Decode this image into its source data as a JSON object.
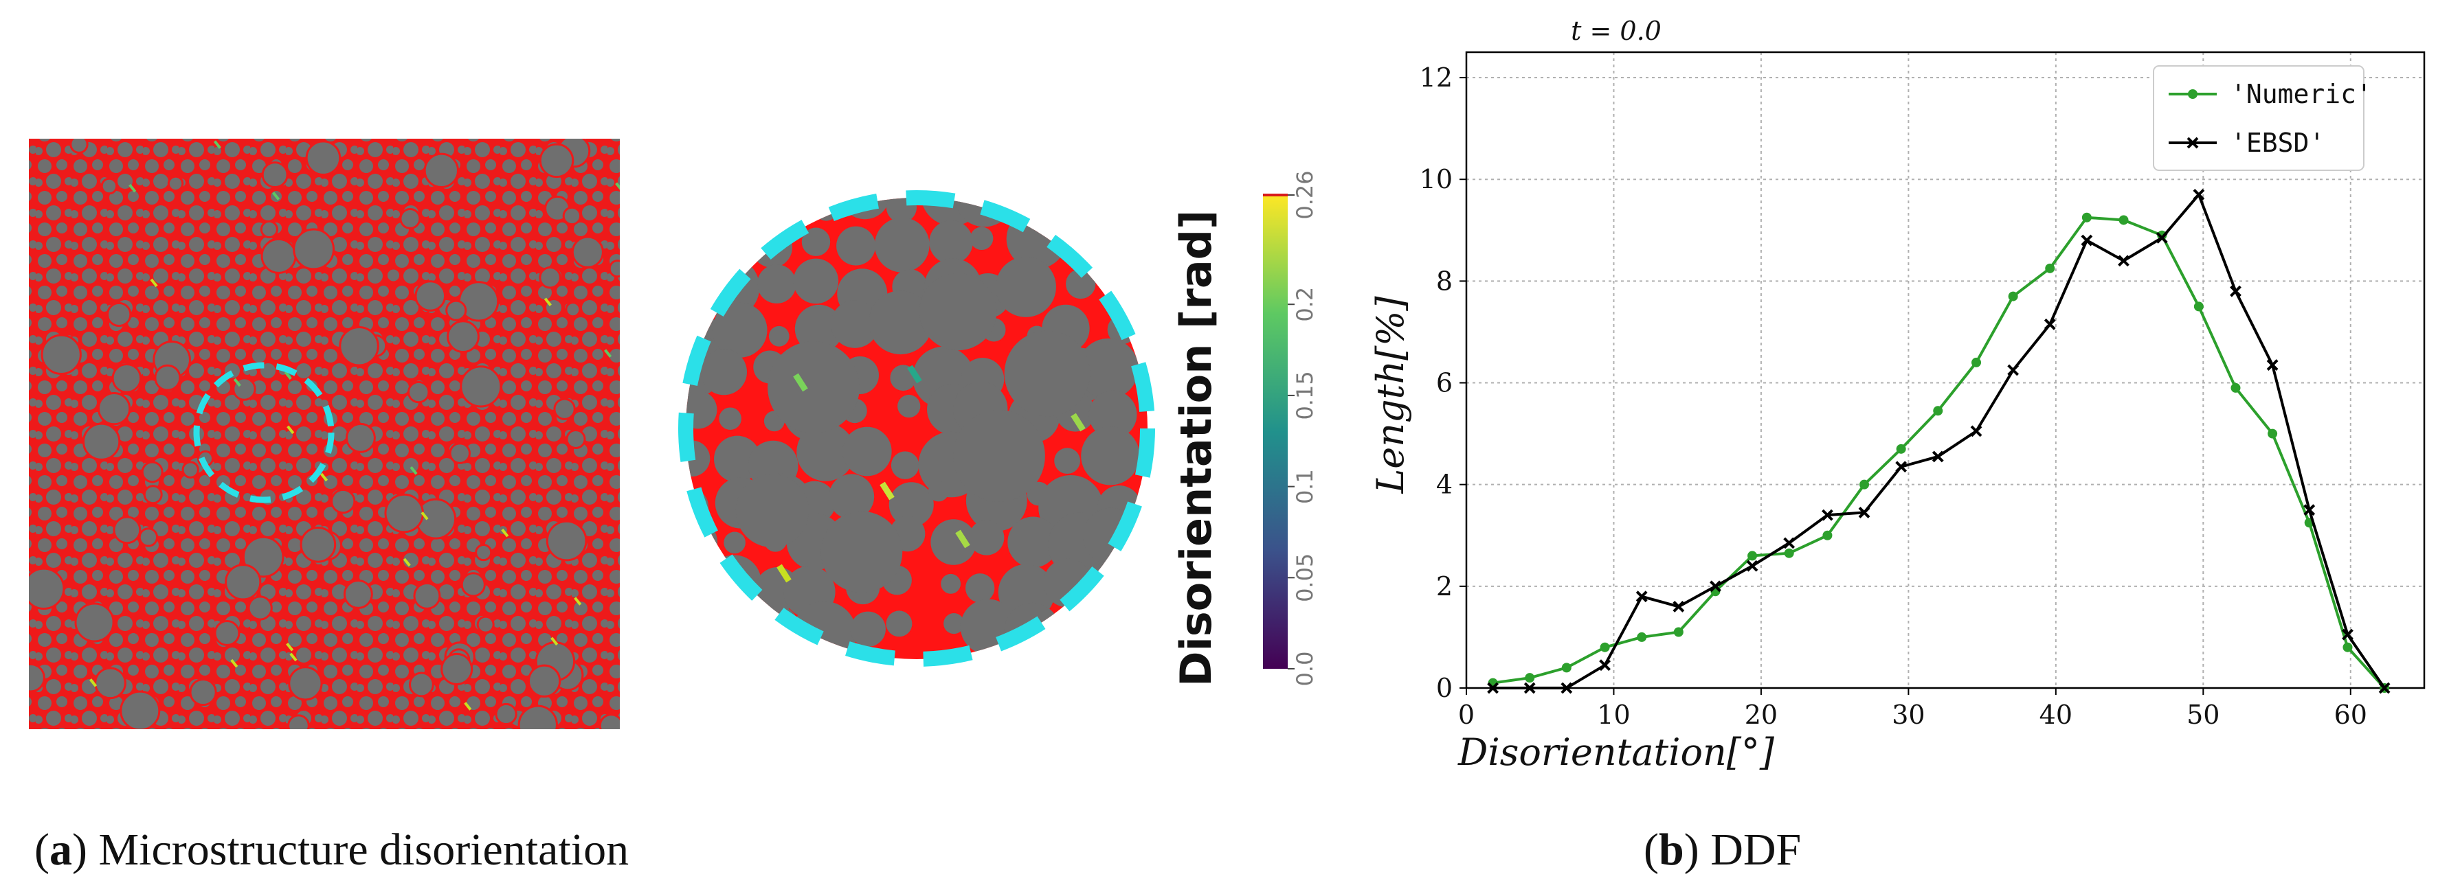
{
  "panel_a": {
    "caption_letter": "a",
    "caption_text": " Microstructure disorientation",
    "colorbar": {
      "label": "Disorientation [rad]",
      "ticks": [
        "0.0",
        "0.05",
        "0.1",
        "0.15",
        "0.2",
        "0.26"
      ],
      "colormap": "viridis",
      "range": [
        0,
        0.26
      ]
    },
    "colors": {
      "grain": "#6f6f6f",
      "boundary": "#ff1a1a",
      "zoom_outline": "#2be0e8"
    }
  },
  "panel_b": {
    "caption_letter": "b",
    "caption_text": " DDF"
  },
  "chart_data": {
    "type": "line",
    "title": "t = 0.0",
    "xlabel": "Disorientation[°]",
    "ylabel": "Length[%]",
    "xlim": [
      0,
      65
    ],
    "ylim": [
      0,
      12.5
    ],
    "x_ticks": [
      0,
      10,
      20,
      30,
      40,
      50,
      60
    ],
    "y_ticks": [
      0,
      2,
      4,
      6,
      8,
      10,
      12
    ],
    "grid": true,
    "legend_position": "top-right",
    "series": [
      {
        "name": "'Numeric'",
        "color": "#2ca02c",
        "marker": "circle",
        "x": [
          1.8,
          4.3,
          6.8,
          9.4,
          11.9,
          14.4,
          16.9,
          19.4,
          21.9,
          24.5,
          27.0,
          29.5,
          32.0,
          34.6,
          37.1,
          39.6,
          42.1,
          44.6,
          47.2,
          49.7,
          52.2,
          54.7,
          57.2,
          59.8,
          62.3
        ],
        "y": [
          0.1,
          0.2,
          0.4,
          0.8,
          1.0,
          1.1,
          1.9,
          2.6,
          2.65,
          3.0,
          4.0,
          4.7,
          5.45,
          6.4,
          7.7,
          8.25,
          9.25,
          9.2,
          8.9,
          7.5,
          5.9,
          5.0,
          3.25,
          0.8,
          0.0
        ]
      },
      {
        "name": "'EBSD'",
        "color": "#000000",
        "marker": "x",
        "x": [
          1.8,
          4.3,
          6.8,
          9.4,
          11.9,
          14.4,
          16.9,
          19.4,
          21.9,
          24.5,
          27.0,
          29.5,
          32.0,
          34.6,
          37.1,
          39.6,
          42.1,
          44.6,
          47.2,
          49.7,
          52.2,
          54.7,
          57.2,
          59.8,
          62.3
        ],
        "y": [
          0.0,
          0.0,
          0.0,
          0.45,
          1.8,
          1.6,
          2.0,
          2.4,
          2.85,
          3.4,
          3.45,
          4.35,
          4.55,
          5.05,
          6.25,
          7.15,
          8.8,
          8.4,
          8.85,
          9.7,
          7.8,
          6.35,
          3.5,
          1.05,
          0.0
        ]
      }
    ]
  }
}
